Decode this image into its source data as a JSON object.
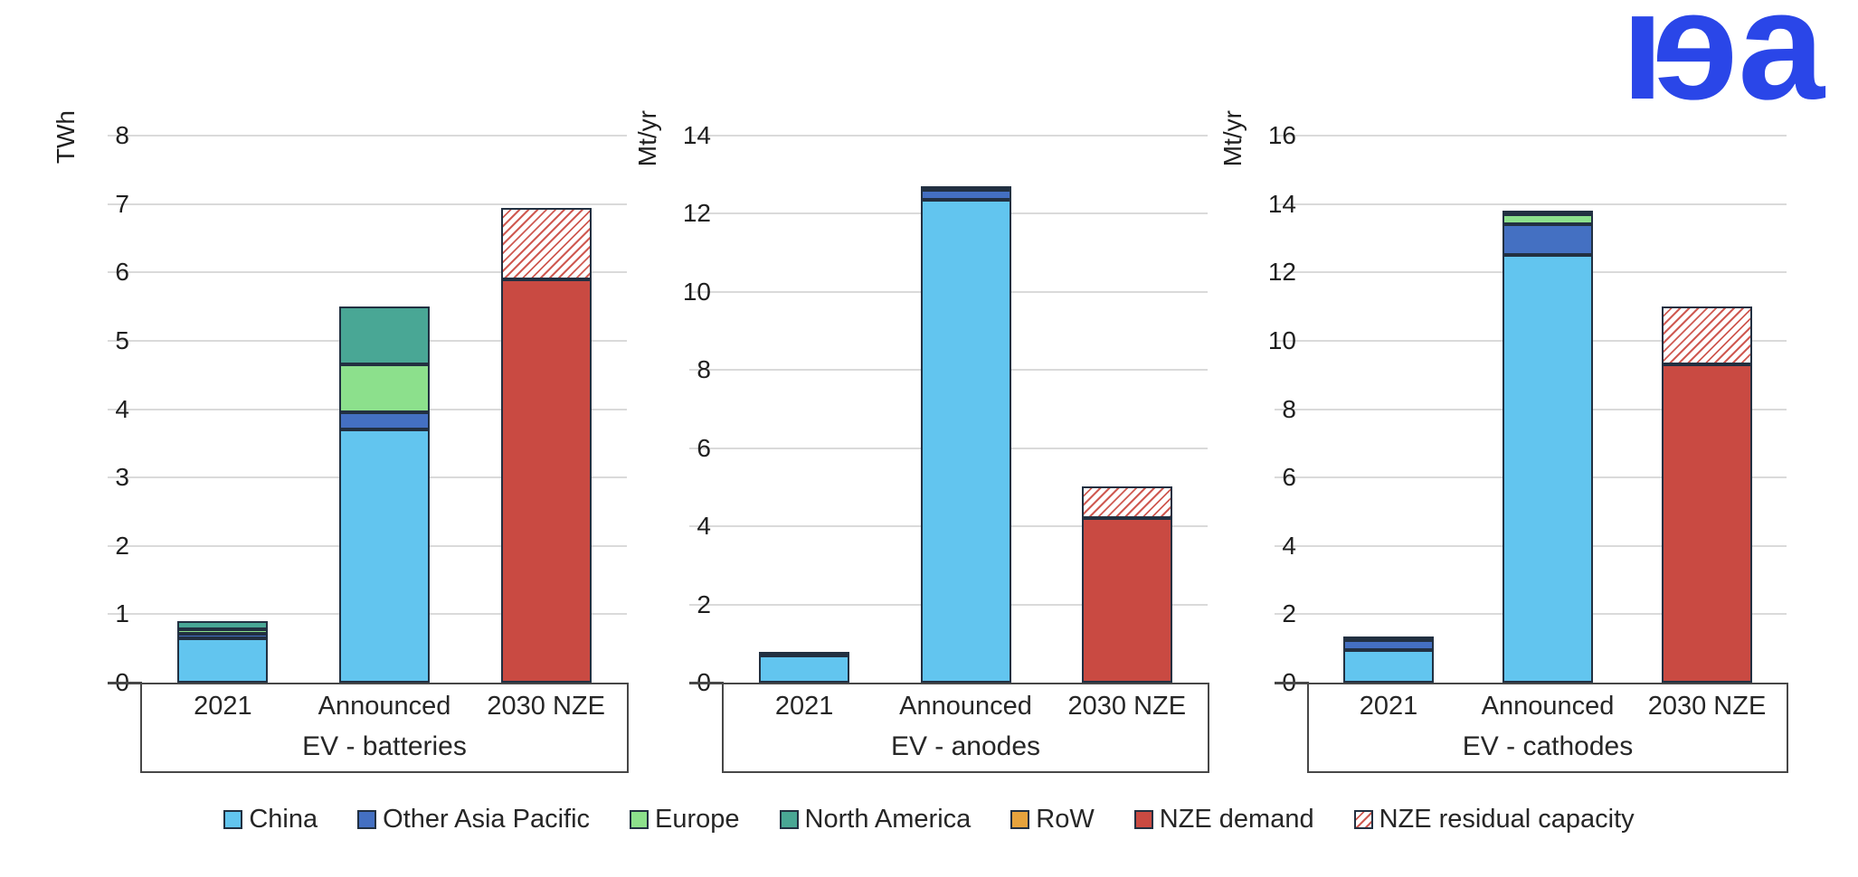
{
  "logo": {
    "text": "iea",
    "color": "#2a46e8"
  },
  "colors": {
    "China": "#62c5ef",
    "Other Asia Pacific": "#4470c2",
    "Europe": "#8ce08c",
    "North America": "#49a795",
    "RoW": "#e6a33d",
    "NZE demand": "#c94a42",
    "NZE residual capacity": "hatch"
  },
  "legend": [
    {
      "label": "China"
    },
    {
      "label": "Other Asia Pacific"
    },
    {
      "label": "Europe"
    },
    {
      "label": "North America"
    },
    {
      "label": "RoW"
    },
    {
      "label": "NZE demand"
    },
    {
      "label": "NZE residual capacity"
    }
  ],
  "chart_data": [
    {
      "type": "bar",
      "stacked": true,
      "title": "EV - batteries",
      "ylabel": "TWh",
      "ylim": [
        0,
        8
      ],
      "ytick_step": 1,
      "grid": true,
      "legend_position": "shared-bottom",
      "categories": [
        "2021",
        "Announced",
        "2030 NZE"
      ],
      "series": [
        {
          "name": "China",
          "values": [
            0.65,
            3.7,
            0
          ]
        },
        {
          "name": "Other Asia Pacific",
          "values": [
            0.07,
            0.25,
            0
          ]
        },
        {
          "name": "Europe",
          "values": [
            0.06,
            0.7,
            0
          ]
        },
        {
          "name": "North America",
          "values": [
            0.12,
            0.85,
            0
          ]
        },
        {
          "name": "RoW",
          "values": [
            0,
            0,
            0
          ]
        },
        {
          "name": "NZE demand",
          "values": [
            0,
            0,
            5.9
          ]
        },
        {
          "name": "NZE residual capacity",
          "values": [
            0,
            0,
            1.05
          ]
        }
      ]
    },
    {
      "type": "bar",
      "stacked": true,
      "title": "EV - anodes",
      "ylabel": "Mt/yr",
      "ylim": [
        0,
        14
      ],
      "ytick_step": 2,
      "grid": true,
      "legend_position": "shared-bottom",
      "categories": [
        "2021",
        "Announced",
        "2030 NZE"
      ],
      "series": [
        {
          "name": "China",
          "values": [
            0.7,
            12.35,
            0
          ]
        },
        {
          "name": "Other Asia Pacific",
          "values": [
            0.1,
            0.25,
            0
          ]
        },
        {
          "name": "Europe",
          "values": [
            0,
            0.1,
            0
          ]
        },
        {
          "name": "North America",
          "values": [
            0,
            0,
            0
          ]
        },
        {
          "name": "RoW",
          "values": [
            0,
            0,
            0
          ]
        },
        {
          "name": "NZE demand",
          "values": [
            0,
            0,
            4.2
          ]
        },
        {
          "name": "NZE residual capacity",
          "values": [
            0,
            0,
            0.8
          ]
        }
      ]
    },
    {
      "type": "bar",
      "stacked": true,
      "title": "EV - cathodes",
      "ylabel": "Mt/yr",
      "ylim": [
        0,
        16
      ],
      "ytick_step": 2,
      "grid": true,
      "legend_position": "shared-bottom",
      "categories": [
        "2021",
        "Announced",
        "2030 NZE"
      ],
      "series": [
        {
          "name": "China",
          "values": [
            0.95,
            12.5,
            0
          ]
        },
        {
          "name": "Other Asia Pacific",
          "values": [
            0.3,
            0.9,
            0
          ]
        },
        {
          "name": "Europe",
          "values": [
            0.05,
            0.3,
            0
          ]
        },
        {
          "name": "North America",
          "values": [
            0,
            0.1,
            0
          ]
        },
        {
          "name": "RoW",
          "values": [
            0,
            0,
            0
          ]
        },
        {
          "name": "NZE demand",
          "values": [
            0,
            0,
            9.3
          ]
        },
        {
          "name": "NZE residual capacity",
          "values": [
            0,
            0,
            1.7
          ]
        }
      ]
    }
  ]
}
